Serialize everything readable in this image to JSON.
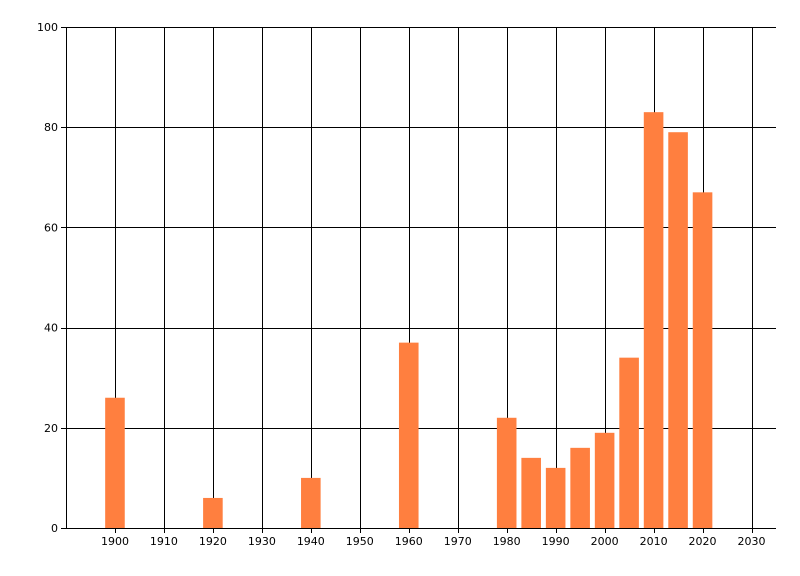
{
  "chart_data": {
    "type": "bar",
    "title": "",
    "xlabel": "",
    "ylabel": "",
    "xlim": [
      1890,
      2035
    ],
    "ylim": [
      0,
      100
    ],
    "grid": true,
    "legend": "none",
    "bar_color": "#FF7F3F",
    "x_ticks": [
      1900,
      1910,
      1920,
      1930,
      1940,
      1950,
      1960,
      1970,
      1980,
      1990,
      2000,
      2010,
      2020,
      2030
    ],
    "y_ticks": [
      0,
      20,
      40,
      60,
      80,
      100
    ],
    "x_gridlines": [
      1900,
      1910,
      1920,
      1930,
      1940,
      1950,
      1960,
      1970,
      1980,
      1990,
      2000,
      2010,
      2020,
      2030
    ],
    "bar_width_years": 4,
    "x": [
      1900,
      1920,
      1940,
      1960,
      1980,
      1985,
      1990,
      1995,
      2000,
      2005,
      2010,
      2015,
      2020
    ],
    "values": [
      26,
      6,
      10,
      37,
      22,
      14,
      12,
      16,
      19,
      34,
      83,
      79,
      67
    ]
  }
}
